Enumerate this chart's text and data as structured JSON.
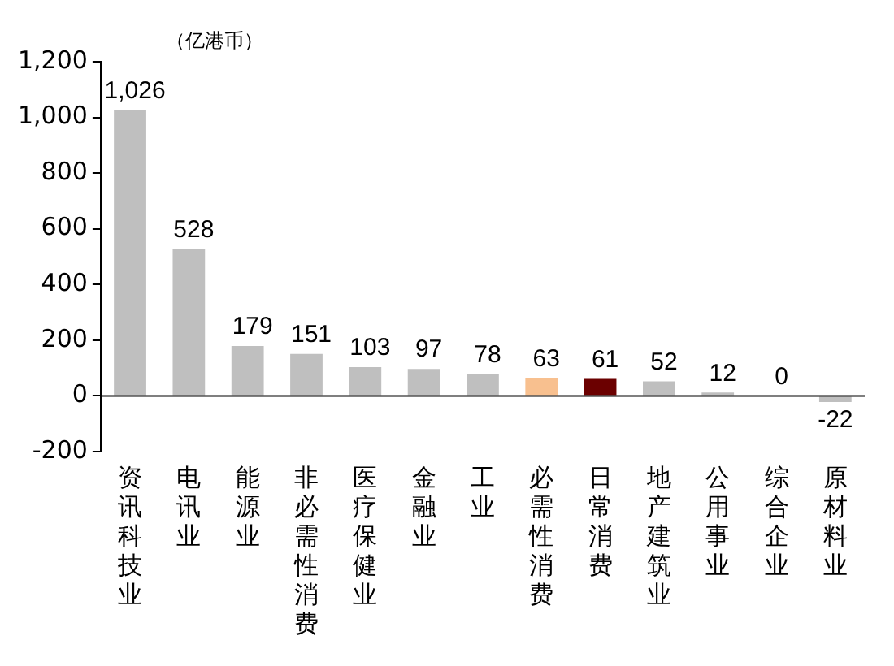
{
  "chart_data": {
    "type": "bar",
    "annotations": [
      "（亿港币）"
    ],
    "categories": [
      "资讯科技业",
      "电讯业",
      "能源业",
      "非必需性消费",
      "医疗保健业",
      "金融业",
      "工业",
      "必需性消费",
      "日常消费",
      "地产建筑业",
      "公用事业",
      "综合企业",
      "原材料业"
    ],
    "values": [
      1026,
      528,
      179,
      151,
      103,
      97,
      78,
      63,
      61,
      52,
      12,
      0,
      -22
    ],
    "colors": [
      "#bfbfbf",
      "#bfbfbf",
      "#bfbfbf",
      "#bfbfbf",
      "#bfbfbf",
      "#bfbfbf",
      "#bfbfbf",
      "#f8c08f",
      "#6b0000",
      "#bfbfbf",
      "#bfbfbf",
      "#bfbfbf",
      "#bfbfbf"
    ],
    "value_labels": [
      "1,026",
      "528",
      "179",
      "151",
      "103",
      "97",
      "78",
      "63",
      "61",
      "52",
      "12",
      "0",
      "-22"
    ],
    "ylim": [
      -200,
      1200
    ],
    "yticks": [
      -200,
      0,
      200,
      400,
      600,
      800,
      {
        "value": 1000,
        "label": "1,000"
      },
      {
        "value": 1200,
        "label": "1,200"
      }
    ]
  }
}
